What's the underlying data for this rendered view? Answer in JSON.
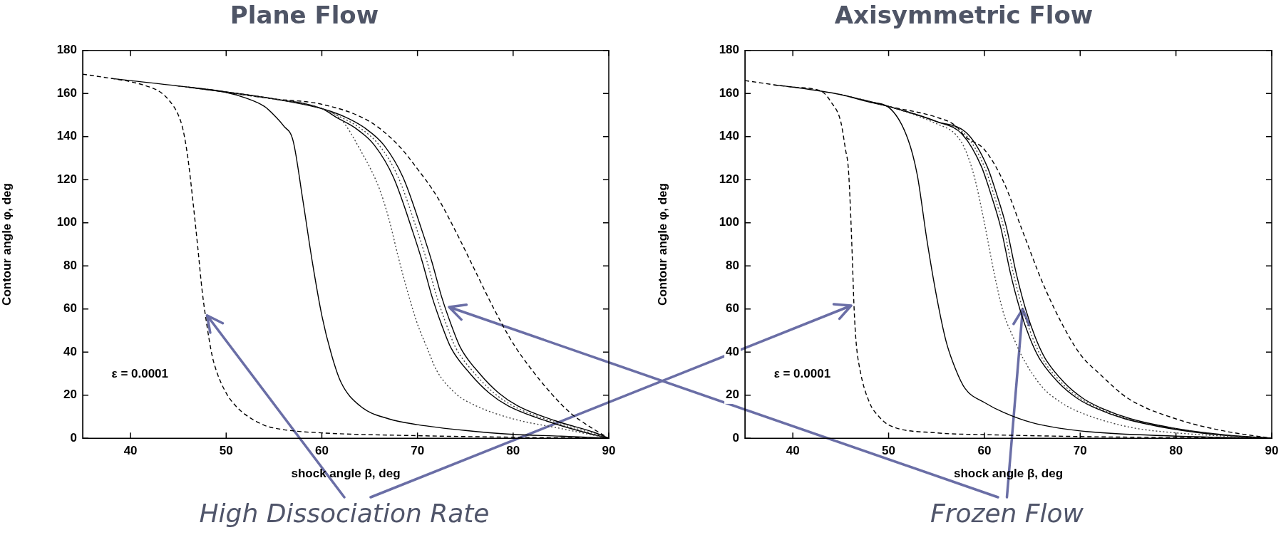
{
  "chart_data": [
    {
      "type": "line",
      "title": "Plane Flow",
      "xlabel": "shock angle β, deg",
      "ylabel": "Contour angle φ, deg",
      "xlim": [
        35,
        90
      ],
      "ylim": [
        0,
        180
      ],
      "xticks": [
        40,
        50,
        60,
        70,
        80,
        90
      ],
      "yticks": [
        0,
        20,
        40,
        60,
        80,
        100,
        120,
        140,
        160,
        180
      ],
      "legend": false,
      "marker": "none",
      "annotations": [
        "ε = 0.0001",
        {
          "text": "High Dissociation Rate",
          "x": 48,
          "y": 57
        }
      ],
      "series": [
        {
          "color": "#000000",
          "line_style": "dashed",
          "x": [
            35,
            38,
            40,
            42,
            43,
            44,
            45,
            45.5,
            46,
            46.5,
            47,
            47.5,
            48,
            48.5,
            49,
            50,
            51,
            52,
            54,
            56,
            60,
            70,
            80,
            90
          ],
          "values": [
            169,
            167,
            165.5,
            163,
            161,
            157,
            150,
            143,
            130,
            111,
            90,
            68,
            52,
            39,
            31,
            21,
            15,
            11,
            6,
            4,
            2.5,
            1.2,
            0.5,
            0
          ]
        },
        {
          "color": "#000000",
          "line_style": "solid",
          "x": [
            38,
            40,
            45,
            50,
            52,
            54,
            55,
            56,
            57,
            58,
            59,
            60,
            61,
            62,
            64,
            67,
            70,
            75,
            80,
            85,
            90
          ],
          "values": [
            167,
            166,
            163.5,
            160.5,
            158,
            154,
            150,
            145,
            138,
            111,
            82,
            57,
            39,
            26,
            15,
            9,
            6.3,
            3.6,
            1.8,
            1,
            0
          ]
        },
        {
          "color": "#444444",
          "line_style": "dotted",
          "x": [
            45,
            55,
            60,
            62,
            64,
            66,
            67,
            68,
            69,
            70,
            71,
            72,
            74,
            76,
            80,
            85,
            90
          ],
          "values": [
            163.5,
            157.5,
            153,
            148,
            134,
            116,
            102,
            84,
            67.5,
            53,
            42,
            31.5,
            20.7,
            15.3,
            9,
            4.5,
            0
          ]
        },
        {
          "color": "#000000",
          "line_style": "solid",
          "x": [
            46,
            55,
            60,
            61.5,
            63.5,
            65.5,
            67.5,
            69.5,
            70.5,
            71.5,
            72.5,
            73.5,
            75.5,
            77.5,
            79.5,
            83.5,
            87.5,
            90
          ],
          "values": [
            163,
            157.5,
            153,
            149,
            144,
            136,
            121,
            96,
            82,
            66,
            53,
            42,
            30,
            21,
            15,
            8,
            2.7,
            0
          ]
        },
        {
          "color": "#444444",
          "line_style": "dotted",
          "x": [
            47,
            55,
            60,
            62,
            64,
            66,
            68,
            70,
            71,
            72,
            73,
            74,
            76,
            78,
            80,
            84,
            88,
            90
          ],
          "values": [
            162.5,
            157.5,
            153,
            149,
            144,
            136,
            121,
            96,
            82,
            66,
            53,
            42,
            30,
            21,
            15,
            8,
            2.7,
            0
          ]
        },
        {
          "color": "#000000",
          "line_style": "solid",
          "x": [
            48,
            55,
            60,
            62.5,
            64.5,
            66.5,
            68.5,
            70.5,
            71.5,
            72.5,
            73.5,
            74.5,
            76.5,
            78.5,
            80.5,
            84.5,
            88.5,
            90
          ],
          "values": [
            162,
            157.5,
            153,
            149,
            144,
            136,
            121,
            96,
            82,
            66,
            53,
            42,
            30,
            21,
            15,
            8,
            2.7,
            0
          ]
        },
        {
          "color": "#000000",
          "line_style": "dashed",
          "x": [
            50,
            55,
            60,
            65,
            68,
            70,
            72,
            74,
            76,
            78,
            80,
            82,
            84,
            86,
            88,
            90
          ],
          "values": [
            160.5,
            157.5,
            155,
            147,
            136,
            125,
            112.5,
            96,
            78,
            60,
            44,
            31.5,
            20.7,
            11.7,
            5.4,
            0
          ]
        }
      ]
    },
    {
      "type": "line",
      "title": "Axisymmetric Flow",
      "xlabel": "shock angle β, deg",
      "ylabel": "Contour angle φ, deg",
      "xlim": [
        35,
        90
      ],
      "ylim": [
        0,
        180
      ],
      "xticks": [
        40,
        50,
        60,
        70,
        80,
        90
      ],
      "yticks": [
        0,
        20,
        40,
        60,
        80,
        100,
        120,
        140,
        160,
        180
      ],
      "legend": false,
      "marker": "none",
      "annotations": [
        "ε = 0.0001",
        {
          "text": "Frozen Flow",
          "x": 64,
          "y": 60
        }
      ],
      "series": [
        {
          "color": "#000000",
          "line_style": "dashed",
          "x": [
            35,
            40,
            43,
            44,
            45,
            45.5,
            45.8,
            46,
            46.2,
            46.4,
            46.6,
            47,
            48,
            49,
            50,
            55,
            60,
            70,
            80,
            90
          ],
          "values": [
            166,
            163,
            161,
            156,
            147,
            134,
            125,
            108,
            85,
            60,
            45,
            32,
            16.6,
            10,
            6.2,
            2.5,
            1.7,
            0.8,
            0.3,
            0
          ]
        },
        {
          "color": "#000000",
          "line_style": "solid",
          "x": [
            38,
            40,
            45,
            48,
            50,
            52,
            53,
            54,
            55,
            56,
            57,
            58,
            60,
            62,
            65,
            70,
            80,
            90
          ],
          "values": [
            164,
            163,
            159.5,
            156,
            153.6,
            139,
            122,
            92,
            66,
            45,
            32,
            23,
            16.6,
            12,
            7.2,
            3.4,
            1,
            0
          ]
        },
        {
          "color": "#444444",
          "line_style": "dotted",
          "x": [
            45,
            50,
            55,
            57,
            58,
            59,
            60,
            61,
            62,
            63,
            64,
            66,
            68,
            70,
            75,
            80,
            90
          ],
          "values": [
            159.5,
            154,
            146,
            141,
            134,
            120.5,
            100,
            77,
            58,
            47,
            37.4,
            24,
            16.6,
            12,
            5.3,
            2.5,
            0
          ]
        },
        {
          "color": "#000000",
          "line_style": "solid",
          "x": [
            46,
            50,
            55,
            57.7,
            59.7,
            60.7,
            61.7,
            62.7,
            63.7,
            64.7,
            65.7,
            67.7,
            69.7,
            71.7,
            74.7,
            79.7,
            84.7,
            90
          ],
          "values": [
            158.5,
            154,
            147,
            141,
            126,
            113,
            98,
            77,
            60,
            47,
            37.4,
            26,
            18.5,
            13.8,
            9,
            4.3,
            1.5,
            0
          ]
        },
        {
          "color": "#444444",
          "line_style": "dotted",
          "x": [
            47,
            50,
            55,
            58,
            60,
            61,
            62,
            63,
            64,
            65,
            66,
            68,
            70,
            72,
            75,
            80,
            85,
            90
          ],
          "values": [
            157.5,
            154,
            147,
            141,
            126,
            113,
            98,
            77,
            60,
            47,
            37.4,
            26,
            18.5,
            13.8,
            9,
            4.3,
            1.5,
            0
          ]
        },
        {
          "color": "#000000",
          "line_style": "solid",
          "x": [
            48,
            50,
            55,
            58.3,
            60.3,
            61.3,
            62.3,
            63.3,
            64.3,
            65.3,
            66.3,
            68.3,
            70.3,
            72.3,
            75.3,
            80.3,
            85.3,
            90
          ],
          "values": [
            156,
            154,
            147,
            141,
            126,
            113,
            98,
            77,
            60,
            47,
            37.4,
            26,
            18.5,
            13.8,
            9,
            4.3,
            1.5,
            0
          ]
        },
        {
          "color": "#000000",
          "line_style": "dashed",
          "x": [
            50,
            55,
            57,
            58,
            60,
            62,
            64,
            66,
            68,
            70,
            72,
            75,
            80,
            85,
            90
          ],
          "values": [
            154,
            149,
            145,
            140,
            134,
            119,
            96,
            73,
            54,
            39,
            30,
            18.5,
            9,
            3.4,
            0
          ]
        }
      ]
    }
  ]
}
